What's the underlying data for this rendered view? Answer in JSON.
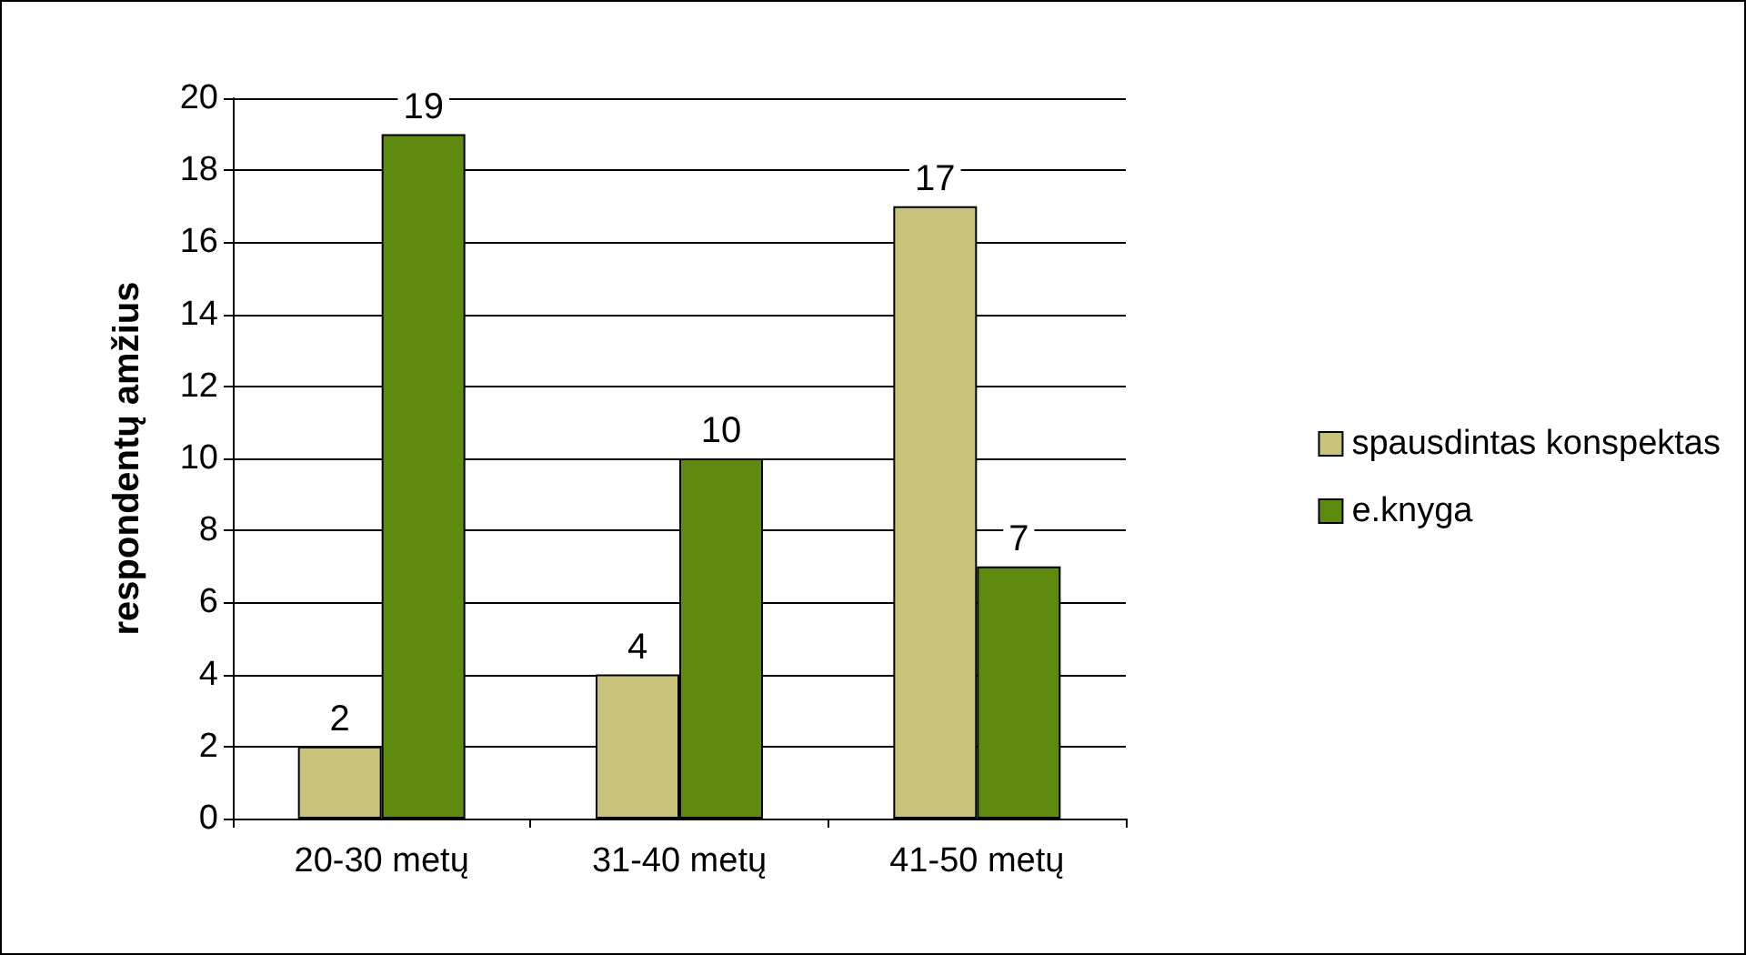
{
  "chart_data": {
    "type": "bar",
    "ylabel": "respondentų amžius",
    "categories": [
      "20-30 metų",
      "31-40 metų",
      "41-50 metų"
    ],
    "series": [
      {
        "name": "spausdintas konspektas",
        "color": "#c9c27a",
        "values": [
          2,
          4,
          17
        ]
      },
      {
        "name": "e.knyga",
        "color": "#5f8a10",
        "values": [
          19,
          10,
          7
        ]
      }
    ],
    "ylim": [
      0,
      20
    ],
    "yticks": [
      0,
      2,
      4,
      6,
      8,
      10,
      12,
      14,
      16,
      18,
      20
    ],
    "grid": "y",
    "legend": "right",
    "data_labels": true
  }
}
